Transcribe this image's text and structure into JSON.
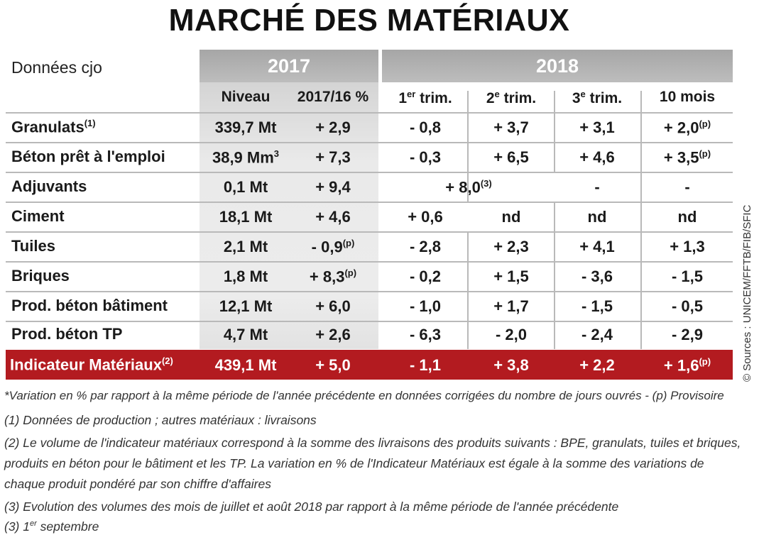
{
  "title": "MARCHÉ DES MATÉRIAUX",
  "sources": "© Sources : UNICEM/FFTB/FIB/SFIC",
  "header": {
    "donnees": "Données cjo",
    "year_2017": "2017",
    "year_2018": "2018",
    "niveau": "Niveau",
    "var_2017": "2017/16 %",
    "t1_num": "1",
    "t1_sup": "er",
    "t1_rest": " trim.",
    "t2_num": "2",
    "t2_sup": "e",
    "t2_rest": " trim.",
    "t3_num": "3",
    "t3_sup": "e",
    "t3_rest": " trim.",
    "mois10": "10 mois"
  },
  "rows": [
    {
      "label": "Granulats",
      "label_sup": "(1)",
      "niveau": "339,7 Mt",
      "var": "+ 2,9",
      "t1": "- 0,8",
      "t2": "+ 3,7",
      "t3": "+ 3,1",
      "m10": "+ 2,0",
      "m10_sup": "(p)"
    },
    {
      "label": "Béton prêt à l'emploi",
      "niveau": "38,9 Mm",
      "niveau_sup": "3",
      "var": "+ 7,3",
      "t1": "- 0,3",
      "t2": "+ 6,5",
      "t3": "+ 4,6",
      "m10": "+ 3,5",
      "m10_sup": "(p)"
    },
    {
      "label": "Adjuvants",
      "niveau": "0,1 Mt",
      "var": "+ 9,4",
      "merged": "+ 8,0",
      "merged_sup": "(3)",
      "t3": "-",
      "m10": "-"
    },
    {
      "label": "Ciment",
      "niveau": "18,1 Mt",
      "var": "+ 4,6",
      "t1": "+ 0,6",
      "t2": "nd",
      "t3": "nd",
      "m10": "nd"
    },
    {
      "label": "Tuiles",
      "niveau": "2,1 Mt",
      "var": "- 0,9",
      "var_sup": "(p)",
      "t1": "- 2,8",
      "t2": "+ 2,3",
      "t3": "+ 4,1",
      "m10": "+ 1,3"
    },
    {
      "label": "Briques",
      "niveau": "1,8 Mt",
      "var": "+ 8,3",
      "var_sup": "(p)",
      "t1": "- 0,2",
      "t2": "+ 1,5",
      "t3": "- 3,6",
      "m10": "- 1,5"
    },
    {
      "label": "Prod. béton bâtiment",
      "niveau": "12,1 Mt",
      "var": "+ 6,0",
      "t1": "- 1,0",
      "t2": "+ 1,7",
      "t3": "- 1,5",
      "m10": "- 0,5"
    },
    {
      "label": "Prod. béton TP",
      "niveau": "4,7 Mt",
      "var": "+ 2,6",
      "t1": "- 6,3",
      "t2": "- 2,0",
      "t3": "- 2,4",
      "m10": "- 2,9"
    }
  ],
  "indicator": {
    "label": "Indicateur Matériaux",
    "label_sup": "(2)",
    "niveau": "439,1 Mt",
    "var": "+ 5,0",
    "t1": "- 1,1",
    "t2": "+ 3,8",
    "t3": "+ 2,2",
    "m10": "+ 1,6",
    "m10_sup": "(p)"
  },
  "notes": {
    "star": "*Variation en % par rapport à la même période de l'année précédente en données corrigées du nombre de jours ouvrés - (p) Provisoire",
    "n1": "(1) Données de production ; autres matériaux : livraisons",
    "n2_l1": "(2) Le volume de l'indicateur matériaux correspond à la somme des livraisons des produits suivants : BPE, granulats, tuiles et briques,",
    "n2_l2": "produits en béton pour le bâtiment et les TP. La variation en % de l'Indicateur Matériaux est égale à la somme des variations de",
    "n2_l3": "chaque produit pondéré par son chiffre d'affaires",
    "n3": "(3) Evolution des volumes des mois de juillet et août 2018 par rapport à la même période de l'année précédente",
    "n4_pre": "(3) 1",
    "n4_sup": "er",
    "n4_post": " septembre"
  },
  "colors": {
    "accent_red": "#b31b20",
    "header_grey": "#b0b0b0",
    "shade": "#e6e6e6"
  }
}
